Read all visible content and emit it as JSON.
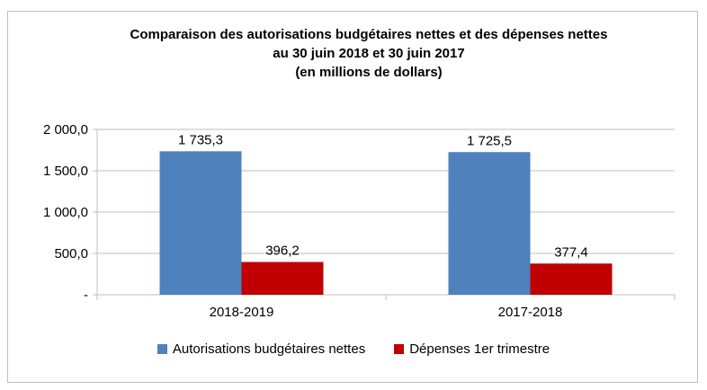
{
  "chart_data": {
    "type": "bar",
    "title_lines": [
      "Comparaison des autorisations budgétaires nettes et des dépenses nettes",
      "au 30 juin 2018 et 30 juin 2017",
      "(en millions de dollars)"
    ],
    "categories": [
      "2018-2019",
      "2017-2018"
    ],
    "series": [
      {
        "name": "Autorisations budgétaires nettes",
        "color": "#4f81bd",
        "values": [
          1735.3,
          1725.5
        ],
        "labels": [
          "1 735,3",
          "1 725,5"
        ]
      },
      {
        "name": "Dépenses 1er trimestre",
        "color": "#c00000",
        "values": [
          396.2,
          377.4
        ],
        "labels": [
          "396,2",
          "377,4"
        ]
      }
    ],
    "ylim": [
      0,
      2000
    ],
    "yticks": [
      0,
      500,
      1000,
      1500,
      2000
    ],
    "ytick_labels": [
      "-",
      "500,0",
      "1 000,0",
      "1 500,0",
      "2 000,0"
    ],
    "grid": true,
    "legend": "bottom"
  }
}
